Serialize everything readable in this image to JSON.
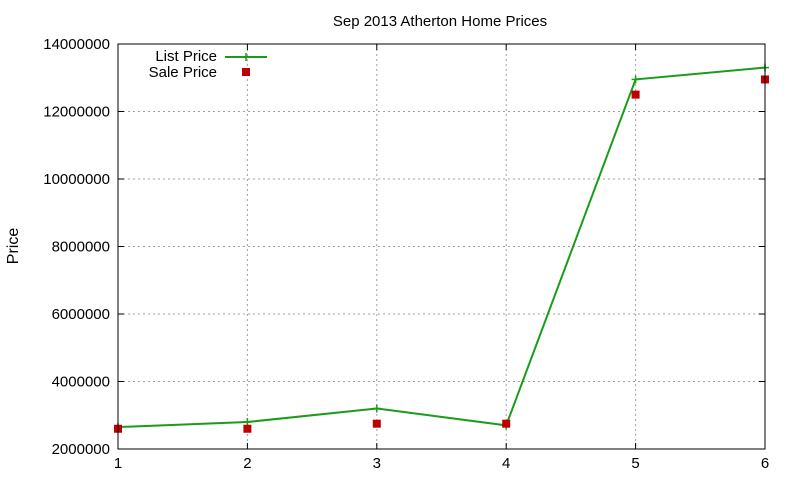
{
  "chart_data": {
    "type": "line",
    "title": "Sep 2013 Atherton Home Prices",
    "xlabel": "",
    "ylabel": "Price",
    "x": [
      1,
      2,
      3,
      4,
      5,
      6
    ],
    "xlim": [
      1,
      6
    ],
    "ylim": [
      2000000,
      14000000
    ],
    "x_ticks": [
      "1",
      "2",
      "3",
      "4",
      "5",
      "6"
    ],
    "y_ticks": [
      "2000000",
      "4000000",
      "6000000",
      "8000000",
      "10000000",
      "12000000",
      "14000000"
    ],
    "grid": true,
    "legend_position": "top-left",
    "series": [
      {
        "name": "List Price",
        "style": "line-plus",
        "color": "#1a9c1a",
        "values": [
          2650000,
          2800000,
          3200000,
          2700000,
          12950000,
          13300000
        ]
      },
      {
        "name": "Sale Price",
        "style": "square-markers",
        "color": "#c00000",
        "values": [
          2600000,
          2600000,
          2750000,
          2750000,
          12500000,
          12950000
        ]
      }
    ]
  }
}
